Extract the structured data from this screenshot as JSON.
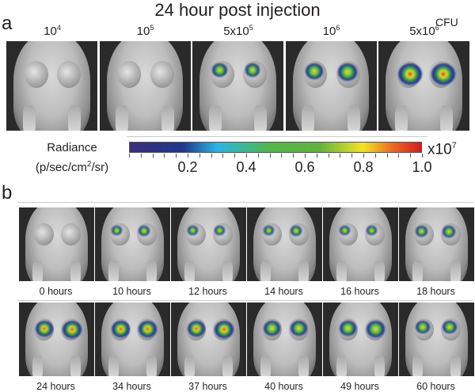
{
  "panel_a": {
    "letter": "a",
    "title": "24 hour post injection",
    "unit_label": "CFU",
    "doses": [
      {
        "base": "10",
        "exp": "4"
      },
      {
        "base": "10",
        "exp": "5"
      },
      {
        "base": "5x10",
        "exp": "5"
      },
      {
        "base": "10",
        "exp": "6"
      },
      {
        "base": "5x10",
        "exp": "6"
      }
    ],
    "signal_levels": [
      0,
      0,
      0.3,
      0.5,
      1.0
    ]
  },
  "colorbar": {
    "label_line1": "Radiance",
    "label_line2_pre": "(p/sec/cm",
    "label_line2_exp": "2",
    "label_line2_post": "/sr)",
    "scale_base": "x10",
    "scale_exp": "7",
    "tick_labels": [
      "0.2",
      "0.4",
      "0.6",
      "0.8",
      "1.0"
    ],
    "colors": [
      "#3b2f7e",
      "#1f3590",
      "#27b6e6",
      "#4fb848",
      "#f4e51e",
      "#ee6b22",
      "#d7191c"
    ]
  },
  "panel_b": {
    "letter": "b",
    "row1": [
      "0 hours",
      "10 hours",
      "12 hours",
      "14 hours",
      "16 hours",
      "18 hours"
    ],
    "row2": [
      "24 hours",
      "34 hours",
      "37 hours",
      "40 hours",
      "49 hours",
      "60 hours"
    ]
  }
}
